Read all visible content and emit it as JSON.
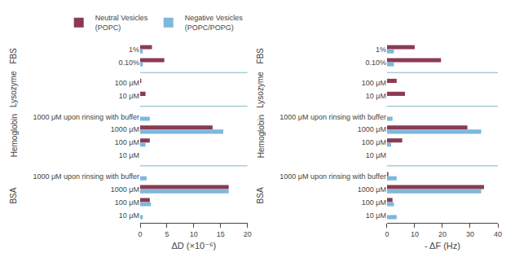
{
  "chart_data": [
    {
      "type": "bar",
      "orientation": "horizontal",
      "xlabel": "ΔD (×10⁻⁶)",
      "xlim": [
        0,
        20
      ],
      "xticks": [
        0,
        5,
        10,
        15,
        20
      ],
      "grid": false,
      "legend": "upper right",
      "categories": [
        [
          "FBS",
          "1%"
        ],
        [
          "FBS",
          "0.10%"
        ],
        [
          "Lysozyme",
          "100 μM"
        ],
        [
          "Lysozyme",
          "10 μM"
        ],
        [
          "Hemoglobin",
          "1000 μM upon rinsing with buffer"
        ],
        [
          "Hemoglobin",
          "1000 μM"
        ],
        [
          "Hemoglobin",
          "100 μM"
        ],
        [
          "Hemoglobin",
          "10 μM"
        ],
        [
          "BSA",
          "1000 μM upon rinsing with buffer"
        ],
        [
          "BSA",
          "1000 μM"
        ],
        [
          "BSA",
          "100 μM"
        ],
        [
          "BSA",
          "10 μM"
        ]
      ],
      "series": [
        {
          "name": "Neutral Vesicles\n(POPC)",
          "color": "#8B3A52",
          "values": [
            2.2,
            4.5,
            0.2,
            1.0,
            0.0,
            13.5,
            1.8,
            0.0,
            0.0,
            16.5,
            1.8,
            0.0
          ]
        },
        {
          "name": "Negative Vesicles\n(POPC/POPG)",
          "color": "#7EB8DA",
          "values": [
            0.5,
            0.5,
            0.0,
            0.0,
            1.8,
            15.5,
            1.0,
            0.0,
            1.2,
            16.5,
            2.0,
            0.5
          ]
        }
      ]
    },
    {
      "type": "bar",
      "orientation": "horizontal",
      "xlabel": "- ΔF (Hz)",
      "xlim": [
        0,
        40
      ],
      "xticks": [
        0,
        10,
        20,
        30,
        40
      ],
      "grid": false,
      "categories": [
        [
          "FBS",
          "1%"
        ],
        [
          "FBS",
          "0.10%"
        ],
        [
          "Lysozyme",
          "100 μM"
        ],
        [
          "Lysozyme",
          "10 μM"
        ],
        [
          "Hemoglobin",
          "1000 μM upon rinsing with buffer"
        ],
        [
          "Hemoglobin",
          "1000 μM"
        ],
        [
          "Hemoglobin",
          "100 μM"
        ],
        [
          "Hemoglobin",
          "10 μM"
        ],
        [
          "BSA",
          "1000 μM upon rinsing with buffer"
        ],
        [
          "BSA",
          "1000 μM"
        ],
        [
          "BSA",
          "100 μM"
        ],
        [
          "BSA",
          "10 μM"
        ]
      ],
      "series": [
        {
          "color": "#8B3A52",
          "values": [
            10.0,
            19.5,
            3.5,
            6.5,
            0.0,
            29.0,
            5.5,
            0.0,
            0.5,
            35.0,
            2.0,
            0.0
          ]
        },
        {
          "color": "#7EB8DA",
          "values": [
            2.5,
            2.5,
            0.0,
            0.0,
            2.0,
            34.0,
            1.5,
            0.0,
            3.5,
            34.0,
            2.5,
            3.5
          ]
        }
      ]
    }
  ]
}
